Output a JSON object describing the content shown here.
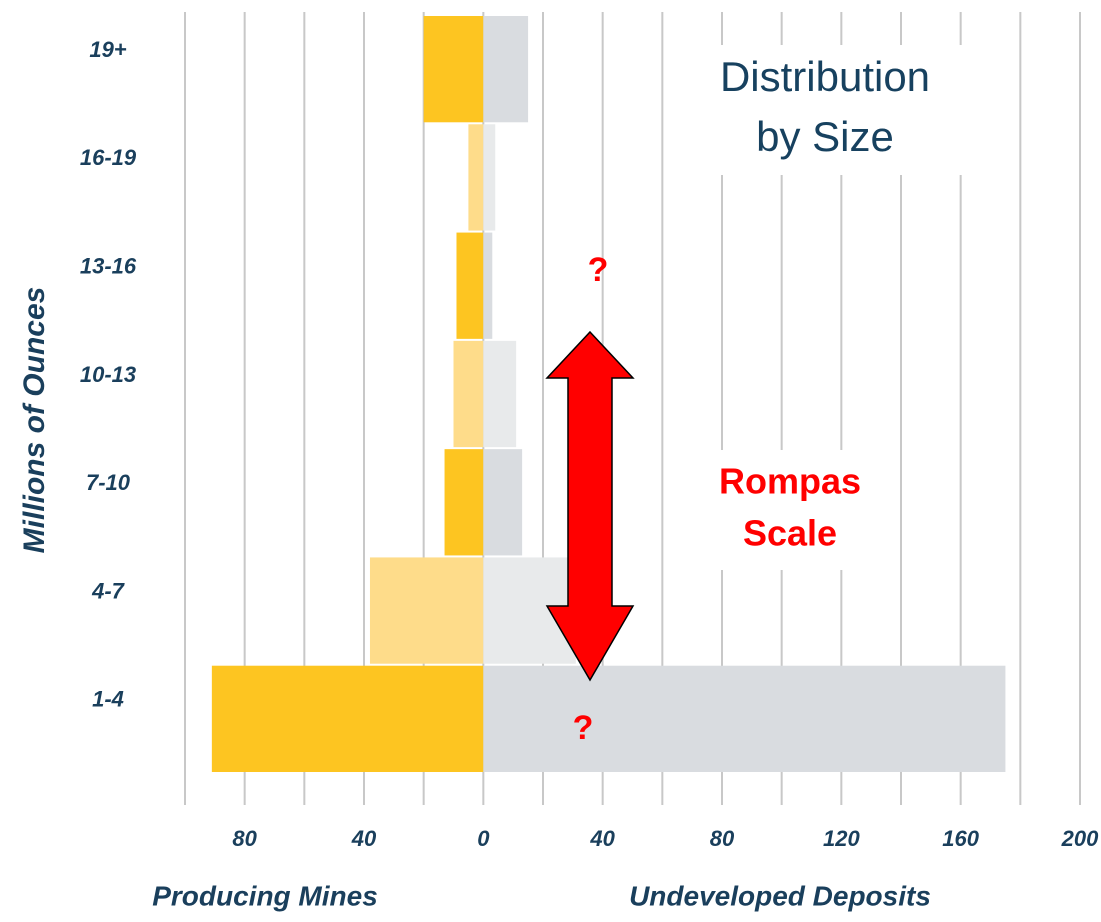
{
  "chart_data": {
    "type": "butterfly",
    "title": [
      "Distribution",
      "by Size"
    ],
    "ylabel": "Millions of Ounces",
    "categories": [
      "19+",
      "16-19",
      "13-16",
      "10-13",
      "7-10",
      "4-7",
      "1-4"
    ],
    "series": [
      {
        "name": "Producing Mines",
        "side": "left",
        "colors": [
          "#fdc521",
          "#fedc8a",
          "#fdc521",
          "#fedc8a",
          "#fdc521",
          "#fedc8a",
          "#fdc521"
        ],
        "values": [
          20,
          5,
          9,
          10,
          13,
          38,
          91
        ]
      },
      {
        "name": "Undeveloped Deposits",
        "side": "right",
        "colors": [
          "#d9dce0",
          "#e8eaeb",
          "#d9dce0",
          "#e8eaeb",
          "#d9dce0",
          "#e8eaeb",
          "#d9dce0"
        ],
        "values": [
          15,
          4,
          3,
          11,
          13,
          31,
          175
        ]
      }
    ],
    "xlim": [
      -100,
      200
    ],
    "xticks": [
      {
        "value": -80,
        "label": "80"
      },
      {
        "value": -40,
        "label": "40"
      },
      0,
      40,
      80,
      120,
      160,
      200
    ],
    "minor_xticks": [
      -100,
      -60,
      -20,
      20,
      60,
      100,
      140,
      180
    ],
    "grid": true,
    "annotations": {
      "question_marks": [
        "?",
        "?"
      ],
      "scale_label": [
        "Rompas",
        "Scale"
      ],
      "arrow_color": "#ff0000"
    }
  }
}
